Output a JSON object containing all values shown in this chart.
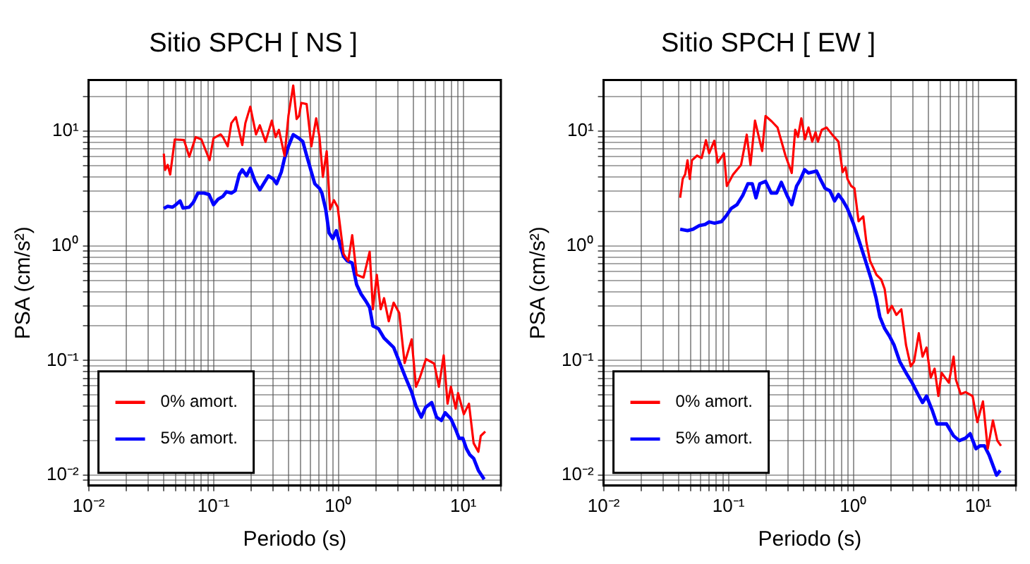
{
  "chart_data": [
    {
      "type": "line",
      "title": "Sitio SPCH [ NS ]",
      "xlabel": "Periodo (s)",
      "ylabel": "PSA (cm/s²)",
      "log": "xy",
      "grid": true,
      "legend": "bottom left",
      "xlim": [
        0.01,
        20
      ],
      "ylim": [
        0.0081,
        28
      ],
      "xticks": [
        {
          "value": 0.01,
          "label": "10⁻²"
        },
        {
          "value": 0.02,
          "label": null
        },
        {
          "value": 0.03,
          "label": null
        },
        {
          "value": 0.04,
          "label": null
        },
        {
          "value": 0.05,
          "label": null
        },
        {
          "value": 0.06,
          "label": null
        },
        {
          "value": 0.07,
          "label": null
        },
        {
          "value": 0.08,
          "label": null
        },
        {
          "value": 0.09,
          "label": null
        },
        {
          "value": 0.1,
          "label": "10⁻¹"
        },
        {
          "value": 0.2,
          "label": null
        },
        {
          "value": 0.3,
          "label": null
        },
        {
          "value": 0.4,
          "label": null
        },
        {
          "value": 0.5,
          "label": null
        },
        {
          "value": 0.6,
          "label": null
        },
        {
          "value": 0.7,
          "label": null
        },
        {
          "value": 0.8,
          "label": null
        },
        {
          "value": 0.9,
          "label": null
        },
        {
          "value": 1,
          "label": "10⁰"
        },
        {
          "value": 2,
          "label": null
        },
        {
          "value": 3,
          "label": null
        },
        {
          "value": 4,
          "label": null
        },
        {
          "value": 5,
          "label": null
        },
        {
          "value": 6,
          "label": null
        },
        {
          "value": 7,
          "label": null
        },
        {
          "value": 8,
          "label": null
        },
        {
          "value": 9,
          "label": null
        },
        {
          "value": 10,
          "label": "10¹"
        },
        {
          "value": 20,
          "label": null
        }
      ],
      "yticks": [
        {
          "value": 0.009,
          "label": null
        },
        {
          "value": 0.01,
          "label": "10⁻²"
        },
        {
          "value": 0.02,
          "label": null
        },
        {
          "value": 0.03,
          "label": null
        },
        {
          "value": 0.04,
          "label": null
        },
        {
          "value": 0.05,
          "label": null
        },
        {
          "value": 0.06,
          "label": null
        },
        {
          "value": 0.07,
          "label": null
        },
        {
          "value": 0.08,
          "label": null
        },
        {
          "value": 0.09,
          "label": null
        },
        {
          "value": 0.1,
          "label": "10⁻¹"
        },
        {
          "value": 0.2,
          "label": null
        },
        {
          "value": 0.3,
          "label": null
        },
        {
          "value": 0.4,
          "label": null
        },
        {
          "value": 0.5,
          "label": null
        },
        {
          "value": 0.6,
          "label": null
        },
        {
          "value": 0.7,
          "label": null
        },
        {
          "value": 0.8,
          "label": null
        },
        {
          "value": 0.9,
          "label": null
        },
        {
          "value": 1,
          "label": "10⁰"
        },
        {
          "value": 2,
          "label": null
        },
        {
          "value": 3,
          "label": null
        },
        {
          "value": 4,
          "label": null
        },
        {
          "value": 5,
          "label": null
        },
        {
          "value": 6,
          "label": null
        },
        {
          "value": 7,
          "label": null
        },
        {
          "value": 8,
          "label": null
        },
        {
          "value": 9,
          "label": null
        },
        {
          "value": 10,
          "label": "10¹"
        },
        {
          "value": 20,
          "label": null
        }
      ],
      "series": [
        {
          "name": "0% amort.",
          "color": "#ff0000",
          "x": [
            0.04,
            0.041,
            0.043,
            0.045,
            0.049,
            0.058,
            0.064,
            0.072,
            0.08,
            0.093,
            0.1,
            0.114,
            0.119,
            0.13,
            0.139,
            0.151,
            0.17,
            0.18,
            0.197,
            0.219,
            0.235,
            0.261,
            0.293,
            0.314,
            0.334,
            0.371,
            0.398,
            0.435,
            0.463,
            0.484,
            0.505,
            0.557,
            0.608,
            0.664,
            0.706,
            0.751,
            0.806,
            0.857,
            0.92,
            0.987,
            1.1,
            1.2,
            1.29,
            1.4,
            1.59,
            1.78,
            1.89,
            2.03,
            2.18,
            2.32,
            2.53,
            2.77,
            3.07,
            3.39,
            3.86,
            4.18,
            4.49,
            5.03,
            5.85,
            6.38,
            6.97,
            7.48,
            7.96,
            8.69,
            9.08,
            10.1,
            11.1,
            12.1,
            13.2,
            13.8,
            15.0
          ],
          "values": [
            6.4,
            4.6,
            5.1,
            4.2,
            8.5,
            8.4,
            6.0,
            8.9,
            8.5,
            5.6,
            8.7,
            9.4,
            8.9,
            7.4,
            11.8,
            13.3,
            7.6,
            11.8,
            16.4,
            9.4,
            11.3,
            8.1,
            12.4,
            8.9,
            10.3,
            6.1,
            13.6,
            25.1,
            12.8,
            13.6,
            17.7,
            17.3,
            7.4,
            13.0,
            8.9,
            4.0,
            6.7,
            2.08,
            2.51,
            2.18,
            0.85,
            0.74,
            1.24,
            0.56,
            0.53,
            0.89,
            0.28,
            0.56,
            0.28,
            0.35,
            0.22,
            0.32,
            0.26,
            0.095,
            0.153,
            0.059,
            0.071,
            0.103,
            0.094,
            0.059,
            0.111,
            0.042,
            0.059,
            0.038,
            0.052,
            0.034,
            0.042,
            0.019,
            0.016,
            0.022,
            0.024
          ]
        },
        {
          "name": "5% amort.",
          "color": "#0000ff",
          "x": [
            0.04,
            0.043,
            0.047,
            0.05,
            0.054,
            0.057,
            0.064,
            0.069,
            0.075,
            0.084,
            0.092,
            0.1,
            0.109,
            0.119,
            0.127,
            0.139,
            0.149,
            0.161,
            0.17,
            0.184,
            0.197,
            0.215,
            0.235,
            0.252,
            0.275,
            0.301,
            0.32,
            0.349,
            0.371,
            0.398,
            0.435,
            0.484,
            0.519,
            0.557,
            0.608,
            0.647,
            0.706,
            0.738,
            0.792,
            0.842,
            0.903,
            0.961,
            1.03,
            1.1,
            1.18,
            1.29,
            1.4,
            1.52,
            1.66,
            1.78,
            1.89,
            2.09,
            2.32,
            2.77,
            3.07,
            3.45,
            3.86,
            4.18,
            4.61,
            4.99,
            5.59,
            6.11,
            6.67,
            7.16,
            7.96,
            8.69,
            9.25,
            9.91,
            10.6,
            11.3,
            12.1,
            13.2,
            14.7
          ],
          "values": [
            2.12,
            2.22,
            2.18,
            2.29,
            2.47,
            2.14,
            2.18,
            2.4,
            2.89,
            2.89,
            2.81,
            2.29,
            2.56,
            2.71,
            2.97,
            2.89,
            3.03,
            4.21,
            4.62,
            4.09,
            4.76,
            3.66,
            3.09,
            3.49,
            4.09,
            3.84,
            3.49,
            4.41,
            5.85,
            7.39,
            9.36,
            8.69,
            8.13,
            6.14,
            4.41,
            3.49,
            3.18,
            2.89,
            2.08,
            1.3,
            1.16,
            1.36,
            1.03,
            0.81,
            0.74,
            0.71,
            0.46,
            0.38,
            0.33,
            0.29,
            0.2,
            0.19,
            0.157,
            0.13,
            0.098,
            0.071,
            0.053,
            0.04,
            0.032,
            0.039,
            0.043,
            0.032,
            0.03,
            0.035,
            0.031,
            0.025,
            0.021,
            0.021,
            0.017,
            0.015,
            0.014,
            0.011,
            0.0092
          ]
        }
      ]
    },
    {
      "type": "line",
      "title": "Sitio SPCH [ EW ]",
      "xlabel": "Periodo (s)",
      "ylabel": "PSA (cm/s²)",
      "log": "xy",
      "grid": true,
      "legend": "bottom left",
      "xlim": [
        0.01,
        20
      ],
      "ylim": [
        0.0081,
        28
      ],
      "xticks": [
        {
          "value": 0.01,
          "label": "10⁻²"
        },
        {
          "value": 0.02,
          "label": null
        },
        {
          "value": 0.03,
          "label": null
        },
        {
          "value": 0.04,
          "label": null
        },
        {
          "value": 0.05,
          "label": null
        },
        {
          "value": 0.06,
          "label": null
        },
        {
          "value": 0.07,
          "label": null
        },
        {
          "value": 0.08,
          "label": null
        },
        {
          "value": 0.09,
          "label": null
        },
        {
          "value": 0.1,
          "label": "10⁻¹"
        },
        {
          "value": 0.2,
          "label": null
        },
        {
          "value": 0.3,
          "label": null
        },
        {
          "value": 0.4,
          "label": null
        },
        {
          "value": 0.5,
          "label": null
        },
        {
          "value": 0.6,
          "label": null
        },
        {
          "value": 0.7,
          "label": null
        },
        {
          "value": 0.8,
          "label": null
        },
        {
          "value": 0.9,
          "label": null
        },
        {
          "value": 1,
          "label": "10⁰"
        },
        {
          "value": 2,
          "label": null
        },
        {
          "value": 3,
          "label": null
        },
        {
          "value": 4,
          "label": null
        },
        {
          "value": 5,
          "label": null
        },
        {
          "value": 6,
          "label": null
        },
        {
          "value": 7,
          "label": null
        },
        {
          "value": 8,
          "label": null
        },
        {
          "value": 9,
          "label": null
        },
        {
          "value": 10,
          "label": "10¹"
        },
        {
          "value": 20,
          "label": null
        }
      ],
      "yticks": [
        {
          "value": 0.009,
          "label": null
        },
        {
          "value": 0.01,
          "label": "10⁻²"
        },
        {
          "value": 0.02,
          "label": null
        },
        {
          "value": 0.03,
          "label": null
        },
        {
          "value": 0.04,
          "label": null
        },
        {
          "value": 0.05,
          "label": null
        },
        {
          "value": 0.06,
          "label": null
        },
        {
          "value": 0.07,
          "label": null
        },
        {
          "value": 0.08,
          "label": null
        },
        {
          "value": 0.09,
          "label": null
        },
        {
          "value": 0.1,
          "label": "10⁻¹"
        },
        {
          "value": 0.2,
          "label": null
        },
        {
          "value": 0.3,
          "label": null
        },
        {
          "value": 0.4,
          "label": null
        },
        {
          "value": 0.5,
          "label": null
        },
        {
          "value": 0.6,
          "label": null
        },
        {
          "value": 0.7,
          "label": null
        },
        {
          "value": 0.8,
          "label": null
        },
        {
          "value": 0.9,
          "label": null
        },
        {
          "value": 1,
          "label": "10⁰"
        },
        {
          "value": 2,
          "label": null
        },
        {
          "value": 3,
          "label": null
        },
        {
          "value": 4,
          "label": null
        },
        {
          "value": 5,
          "label": null
        },
        {
          "value": 6,
          "label": null
        },
        {
          "value": 7,
          "label": null
        },
        {
          "value": 8,
          "label": null
        },
        {
          "value": 9,
          "label": null
        },
        {
          "value": 10,
          "label": "10¹"
        },
        {
          "value": 20,
          "label": null
        }
      ],
      "series": [
        {
          "name": "0% amort.",
          "color": "#ff0000",
          "x": [
            0.041,
            0.043,
            0.045,
            0.047,
            0.049,
            0.051,
            0.056,
            0.061,
            0.066,
            0.07,
            0.077,
            0.082,
            0.092,
            0.097,
            0.109,
            0.126,
            0.14,
            0.15,
            0.163,
            0.186,
            0.198,
            0.222,
            0.247,
            0.286,
            0.321,
            0.342,
            0.36,
            0.383,
            0.41,
            0.437,
            0.468,
            0.498,
            0.52,
            0.558,
            0.609,
            0.677,
            0.759,
            0.82,
            0.865,
            0.896,
            0.961,
            1.02,
            1.1,
            1.2,
            1.27,
            1.36,
            1.53,
            1.67,
            1.78,
            1.89,
            2.03,
            2.21,
            2.42,
            2.64,
            2.88,
            3.06,
            3.34,
            3.58,
            3.85,
            4.16,
            4.47,
            4.79,
            5.09,
            5.81,
            6.34,
            6.62,
            7.23,
            7.89,
            9.0,
            9.82,
            10.9,
            11.9,
            13.1,
            14.2,
            15.2
          ],
          "values": [
            2.63,
            3.84,
            4.21,
            5.59,
            3.84,
            5.59,
            6.14,
            5.85,
            8.36,
            6.43,
            8.28,
            5.33,
            6.43,
            3.33,
            4.21,
            5.08,
            9.36,
            5.08,
            12.4,
            6.74,
            13.6,
            12.2,
            10.8,
            6.14,
            4.33,
            10.3,
            8.93,
            13.0,
            8.53,
            10.8,
            8.13,
            9.81,
            8.13,
            10.3,
            10.8,
            9.36,
            8.13,
            4.41,
            4.85,
            3.84,
            3.33,
            3.18,
            1.64,
            1.81,
            1.08,
            0.74,
            0.56,
            0.51,
            0.42,
            0.26,
            0.3,
            0.25,
            0.28,
            0.136,
            0.089,
            0.098,
            0.173,
            0.108,
            0.13,
            0.071,
            0.085,
            0.049,
            0.078,
            0.064,
            0.108,
            0.068,
            0.051,
            0.053,
            0.049,
            0.029,
            0.044,
            0.017,
            0.03,
            0.02,
            0.018
          ]
        },
        {
          "name": "5% amort.",
          "color": "#0000ff",
          "x": [
            0.041,
            0.047,
            0.052,
            0.058,
            0.065,
            0.07,
            0.077,
            0.088,
            0.097,
            0.105,
            0.117,
            0.13,
            0.143,
            0.155,
            0.166,
            0.178,
            0.198,
            0.22,
            0.243,
            0.265,
            0.294,
            0.321,
            0.351,
            0.373,
            0.407,
            0.437,
            0.468,
            0.507,
            0.543,
            0.593,
            0.648,
            0.707,
            0.759,
            0.82,
            0.896,
            1.0,
            1.12,
            1.25,
            1.39,
            1.52,
            1.63,
            1.78,
            1.94,
            2.12,
            2.35,
            2.64,
            2.95,
            3.28,
            3.58,
            3.85,
            4.27,
            4.66,
            5.09,
            5.56,
            6.34,
            7.05,
            7.89,
            8.61,
            9.57,
            10.3,
            11.2,
            12.2,
            14.0,
            15.0
          ],
          "values": [
            1.4,
            1.36,
            1.4,
            1.5,
            1.54,
            1.62,
            1.58,
            1.63,
            1.86,
            2.12,
            2.29,
            2.76,
            3.49,
            3.49,
            2.63,
            3.49,
            3.66,
            2.89,
            2.89,
            3.59,
            2.76,
            2.29,
            3.33,
            3.73,
            4.62,
            4.33,
            4.41,
            4.5,
            3.84,
            3.18,
            3.03,
            2.47,
            2.81,
            2.51,
            2.12,
            1.57,
            1.08,
            0.74,
            0.51,
            0.35,
            0.24,
            0.19,
            0.164,
            0.136,
            0.098,
            0.078,
            0.064,
            0.051,
            0.043,
            0.049,
            0.037,
            0.028,
            0.028,
            0.028,
            0.022,
            0.02,
            0.021,
            0.023,
            0.017,
            0.018,
            0.018,
            0.015,
            0.01,
            0.011
          ]
        }
      ]
    }
  ]
}
